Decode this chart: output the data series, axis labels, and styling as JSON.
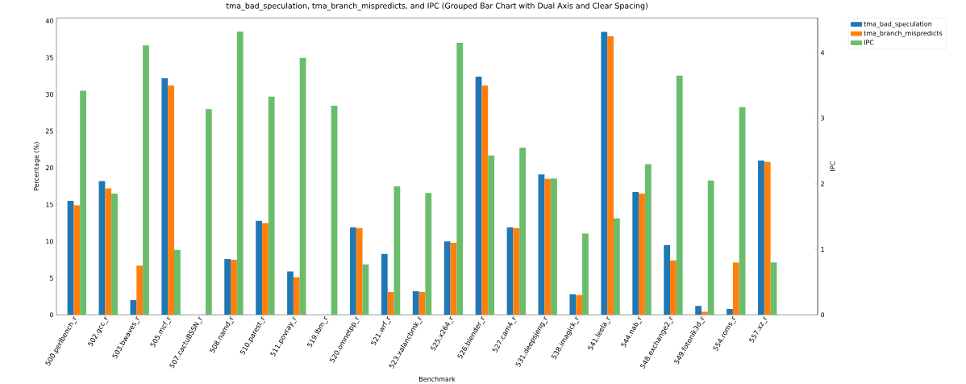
{
  "chart_data": {
    "type": "bar",
    "title": "tma_bad_speculation, tma_branch_mispredicts, and IPC (Grouped Bar Chart with Dual Axis and Clear Spacing)",
    "xlabel": "Benchmark",
    "ylabel": "Percentage (%)",
    "y2label": "IPC",
    "categories": [
      "500.perlbench_r",
      "502.gcc_r",
      "503.bwaves_r",
      "505.mcf_r",
      "507.cactuBSSN_r",
      "508.namd_r",
      "510.parest_r",
      "511.povray_r",
      "519.lbm_r",
      "520.omnetpp_r",
      "521.wrf_r",
      "523.xalancbmk_r",
      "525.x264_r",
      "526.blender_r",
      "527.cam4_r",
      "531.deepsjeng_r",
      "538.imagick_r",
      "541.leela_r",
      "544.nab_r",
      "548.exchange2_r",
      "549.fotonik3d_r",
      "554.roms_r",
      "557.xz_r"
    ],
    "series": [
      {
        "name": "tma_bad_speculation",
        "color": "#1f77b4",
        "values": [
          15.5,
          18.2,
          2.0,
          32.2,
          null,
          7.6,
          12.8,
          5.9,
          null,
          11.9,
          8.3,
          3.2,
          10.0,
          32.4,
          11.9,
          19.1,
          2.8,
          38.5,
          16.7,
          9.5,
          1.2,
          0.8,
          21.0
        ]
      },
      {
        "name": "tma_branch_mispredicts",
        "color": "#ff7f0e",
        "values": [
          14.9,
          17.2,
          6.7,
          31.2,
          null,
          7.5,
          12.5,
          5.1,
          null,
          11.8,
          3.1,
          3.1,
          9.8,
          31.2,
          11.8,
          18.5,
          2.7,
          37.9,
          16.5,
          7.4,
          0.4,
          7.1,
          20.8
        ]
      },
      {
        "name": "IPC",
        "color": "#6abd6a",
        "axis": "y2",
        "values": [
          3.42,
          1.85,
          4.11,
          0.99,
          3.14,
          4.32,
          3.33,
          3.92,
          3.19,
          0.77,
          1.96,
          1.86,
          4.15,
          2.43,
          2.55,
          2.08,
          1.24,
          1.47,
          2.3,
          3.65,
          2.05,
          3.17,
          0.8
        ]
      }
    ],
    "ylim": [
      0,
      40.4
    ],
    "yticks": [
      0,
      5,
      10,
      15,
      20,
      25,
      30,
      35,
      40
    ],
    "y2lim": [
      0,
      4.53
    ],
    "y2ticks": [
      0,
      1,
      2,
      3,
      4
    ],
    "legend": "right"
  }
}
